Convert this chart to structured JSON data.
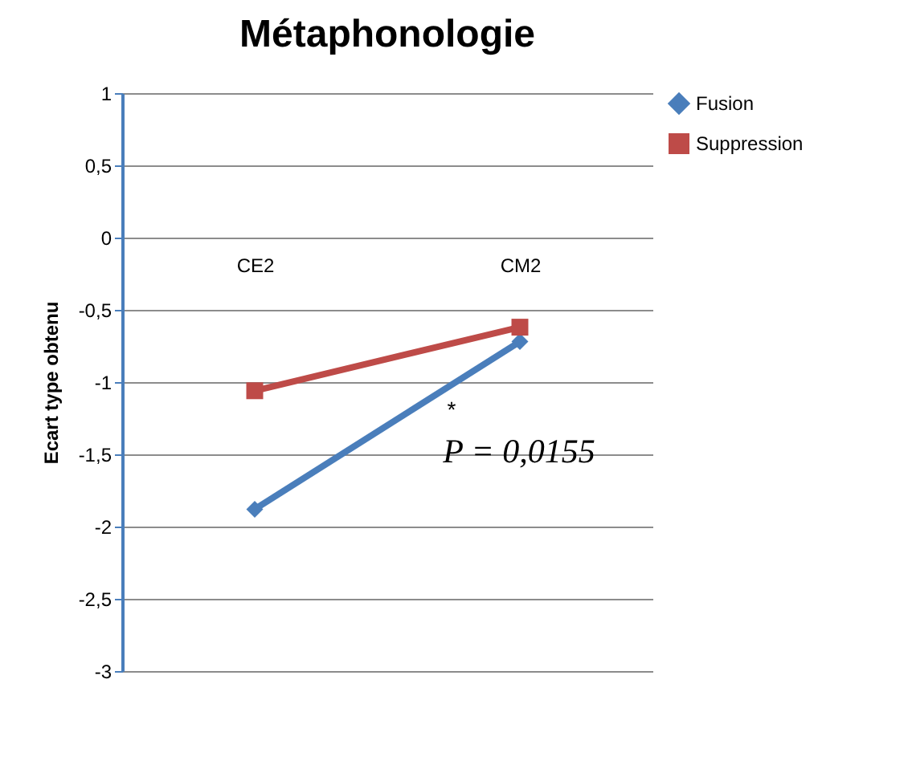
{
  "chart_data": {
    "type": "line",
    "title": "Métaphonologie",
    "ylabel": "Ecart type obtenu",
    "categories": [
      "CE2",
      "CM2"
    ],
    "series": [
      {
        "name": "Fusion",
        "color": "#4a7ebb",
        "values": [
          -1.88,
          -0.72
        ],
        "marker": "diamond"
      },
      {
        "name": "Suppression",
        "color": "#be4b48",
        "values": [
          -1.06,
          -0.62
        ],
        "marker": "square"
      }
    ],
    "ylim": [
      -3,
      1
    ],
    "yticks": [
      {
        "value": -3,
        "label": "-3"
      },
      {
        "value": -2.5,
        "label": "-2,5"
      },
      {
        "value": -2,
        "label": "-2"
      },
      {
        "value": -1.5,
        "label": "-1,5"
      },
      {
        "value": -1,
        "label": "-1"
      },
      {
        "value": -0.5,
        "label": "-0,5"
      },
      {
        "value": 0,
        "label": "0"
      },
      {
        "value": 0.5,
        "label": "0,5"
      },
      {
        "value": 1,
        "label": "1"
      }
    ],
    "grid": "y",
    "legend": "right",
    "annotations": [
      "*",
      "P = 0,0155"
    ]
  }
}
